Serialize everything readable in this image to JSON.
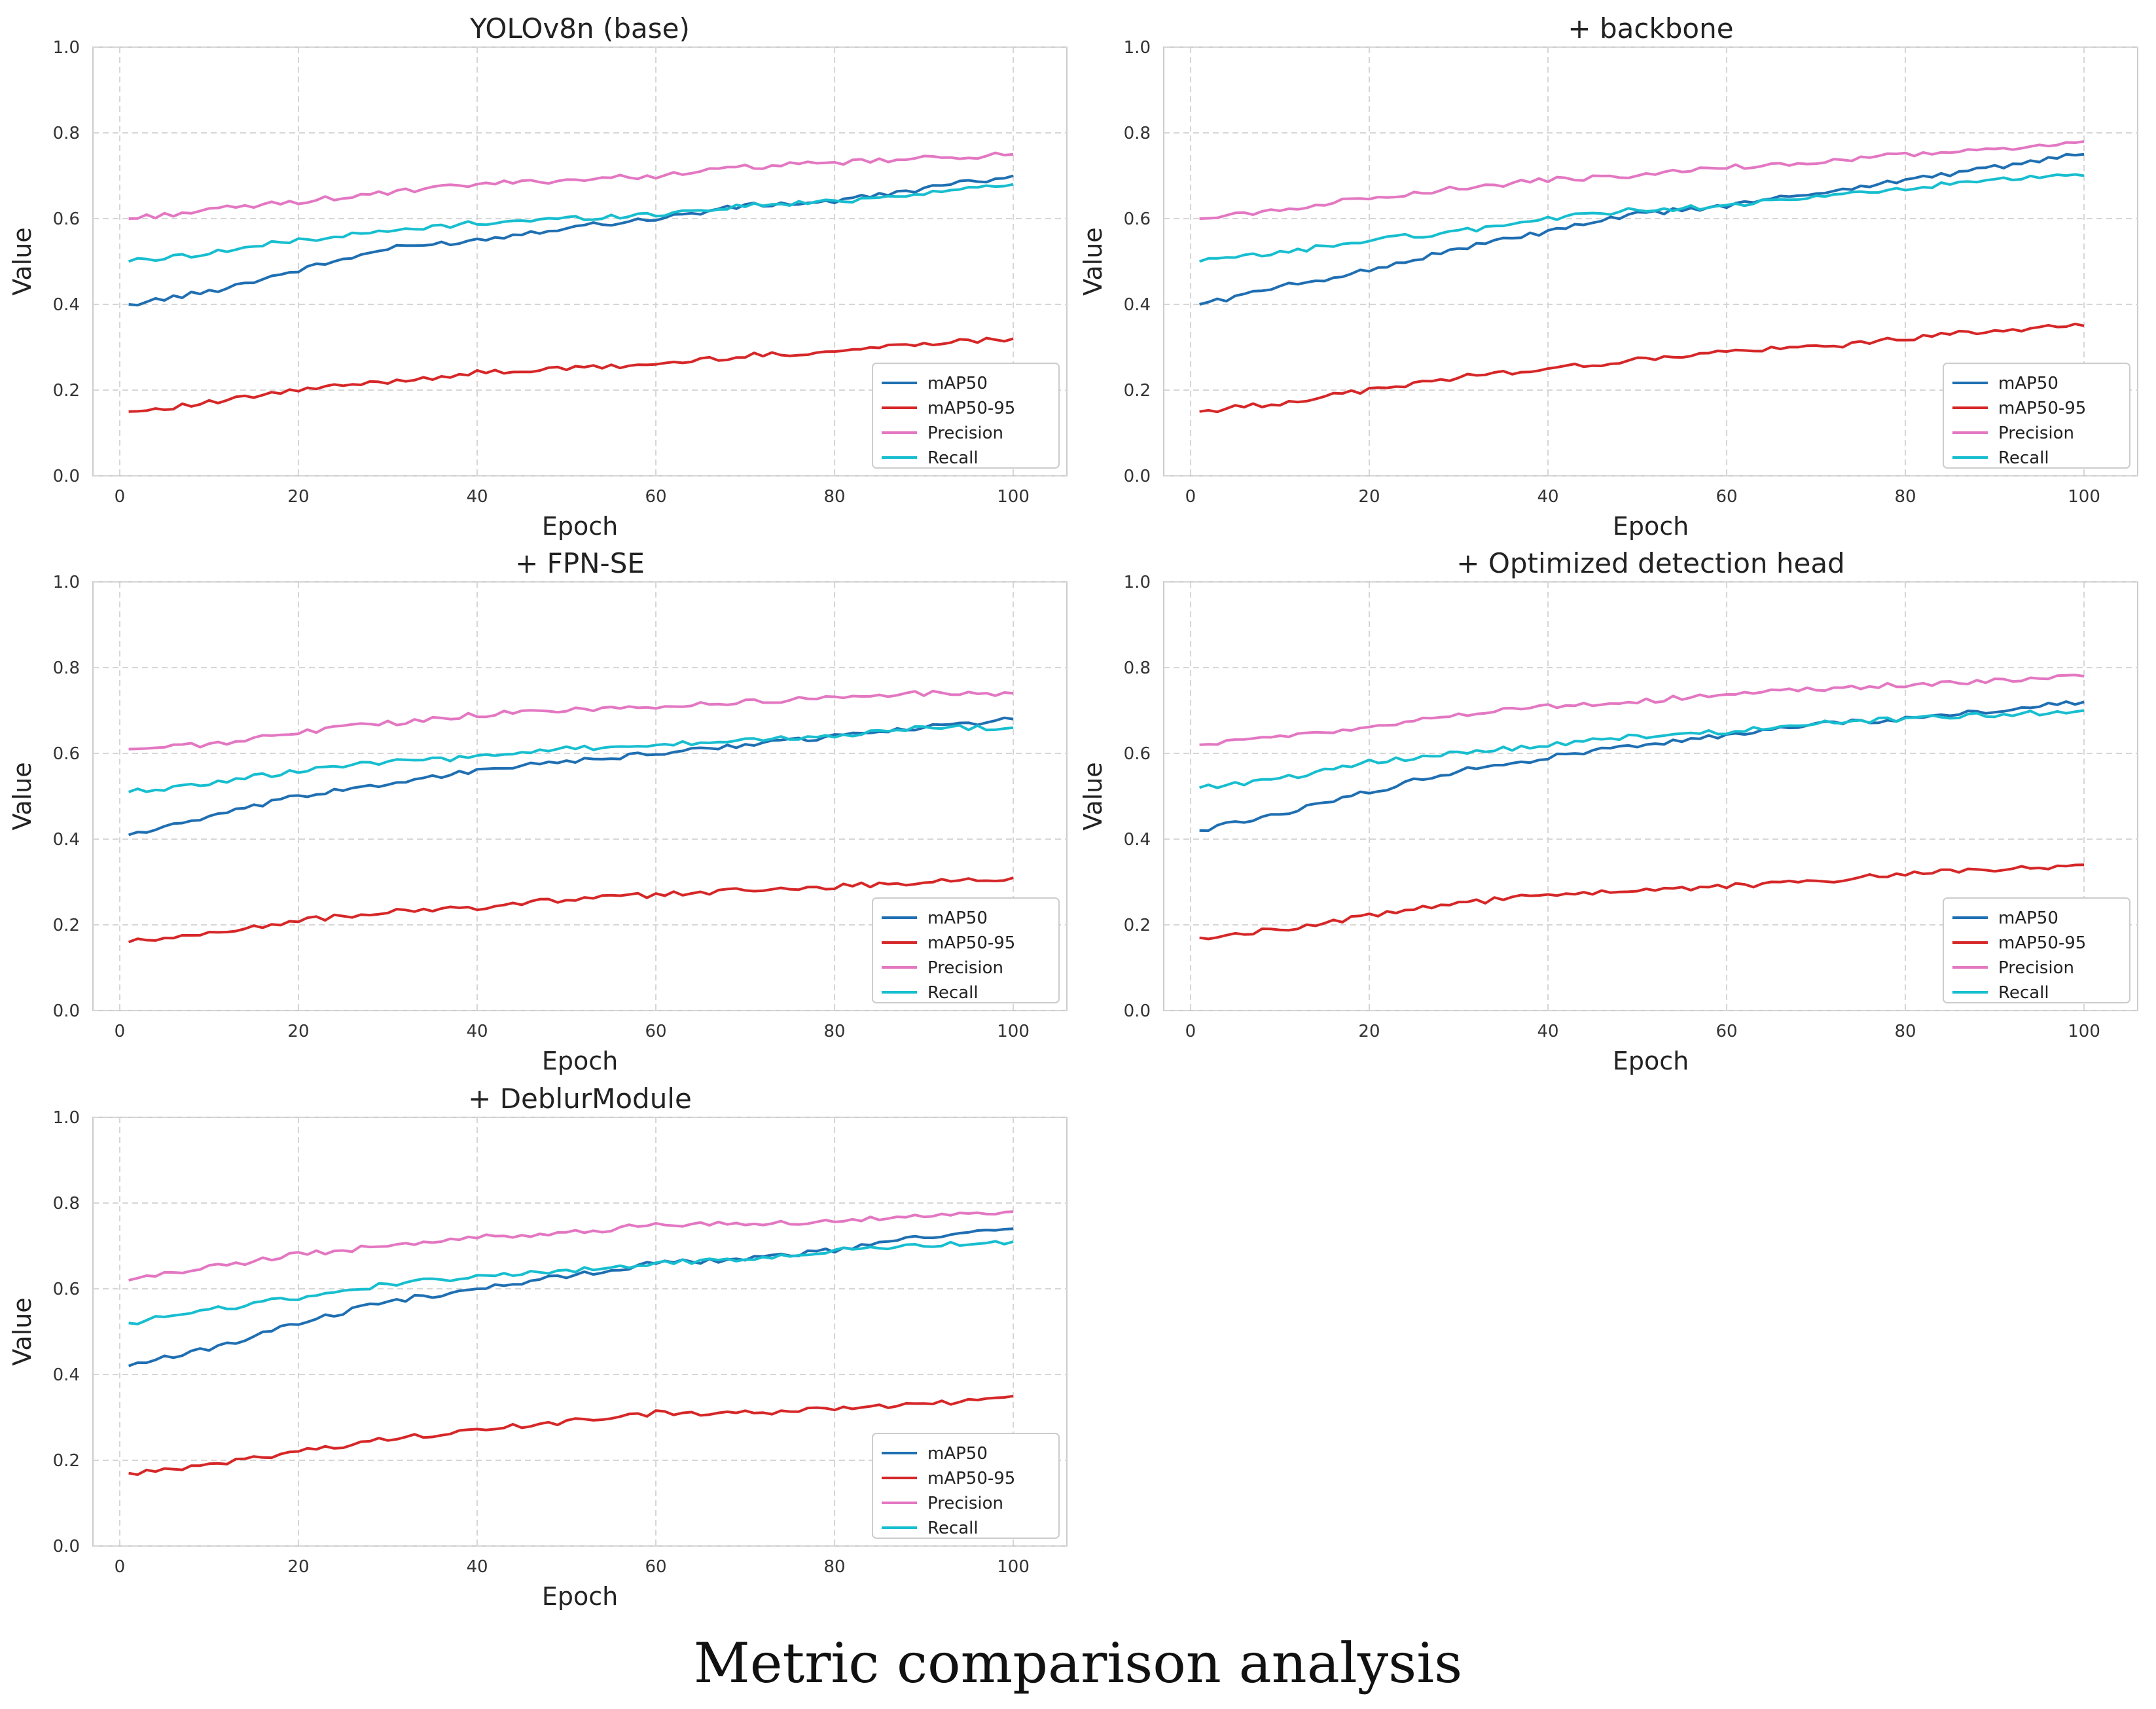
{
  "caption": "Metric comparison analysis",
  "chart_data": [
    {
      "type": "line",
      "title": "YOLOv8n (base)",
      "xlabel": "Epoch",
      "ylabel": "Value",
      "xlim": [
        -3,
        106
      ],
      "ylim": [
        0,
        1
      ],
      "xticks": [
        "0",
        "20",
        "40",
        "60",
        "80",
        "100"
      ],
      "yticks": [
        "0.0",
        "0.2",
        "0.4",
        "0.6",
        "0.8",
        "1.0"
      ],
      "grid": true,
      "legend_position": "lower-right",
      "x": [
        1,
        10,
        20,
        30,
        40,
        50,
        60,
        70,
        80,
        90,
        100
      ],
      "series": [
        {
          "name": "mAP50",
          "color": "#1f6fb2",
          "values": [
            0.4,
            0.43,
            0.48,
            0.53,
            0.55,
            0.58,
            0.6,
            0.63,
            0.64,
            0.67,
            0.7
          ]
        },
        {
          "name": "mAP50-95",
          "color": "#d62728",
          "values": [
            0.15,
            0.17,
            0.2,
            0.22,
            0.24,
            0.25,
            0.26,
            0.28,
            0.29,
            0.31,
            0.32
          ]
        },
        {
          "name": "Precision",
          "color": "#e377c2",
          "values": [
            0.6,
            0.62,
            0.64,
            0.66,
            0.68,
            0.69,
            0.7,
            0.72,
            0.73,
            0.74,
            0.75
          ]
        },
        {
          "name": "Recall",
          "color": "#17becf",
          "values": [
            0.5,
            0.52,
            0.55,
            0.57,
            0.59,
            0.6,
            0.61,
            0.63,
            0.64,
            0.66,
            0.68
          ]
        }
      ]
    },
    {
      "type": "line",
      "title": "+ backbone",
      "xlabel": "Epoch",
      "ylabel": "Value",
      "xlim": [
        -3,
        106
      ],
      "ylim": [
        0,
        1
      ],
      "xticks": [
        "0",
        "20",
        "40",
        "60",
        "80",
        "100"
      ],
      "yticks": [
        "0.0",
        "0.2",
        "0.4",
        "0.6",
        "0.8",
        "1.0"
      ],
      "grid": true,
      "legend_position": "lower-right",
      "x": [
        1,
        10,
        20,
        30,
        40,
        50,
        60,
        70,
        80,
        90,
        100
      ],
      "series": [
        {
          "name": "mAP50",
          "color": "#1f6fb2",
          "values": [
            0.4,
            0.44,
            0.48,
            0.53,
            0.57,
            0.61,
            0.63,
            0.66,
            0.69,
            0.72,
            0.75
          ]
        },
        {
          "name": "mAP50-95",
          "color": "#d62728",
          "values": [
            0.15,
            0.17,
            0.2,
            0.23,
            0.25,
            0.27,
            0.29,
            0.3,
            0.32,
            0.34,
            0.35
          ]
        },
        {
          "name": "Precision",
          "color": "#e377c2",
          "values": [
            0.6,
            0.62,
            0.65,
            0.67,
            0.69,
            0.7,
            0.72,
            0.73,
            0.75,
            0.76,
            0.78
          ]
        },
        {
          "name": "Recall",
          "color": "#17becf",
          "values": [
            0.5,
            0.52,
            0.55,
            0.57,
            0.6,
            0.62,
            0.63,
            0.65,
            0.67,
            0.69,
            0.7
          ]
        }
      ]
    },
    {
      "type": "line",
      "title": "+ FPN-SE",
      "xlabel": "Epoch",
      "ylabel": "Value",
      "xlim": [
        -3,
        106
      ],
      "ylim": [
        0,
        1
      ],
      "xticks": [
        "0",
        "20",
        "40",
        "60",
        "80",
        "100"
      ],
      "yticks": [
        "0.0",
        "0.2",
        "0.4",
        "0.6",
        "0.8",
        "1.0"
      ],
      "grid": true,
      "legend_position": "lower-right",
      "x": [
        1,
        10,
        20,
        30,
        40,
        50,
        60,
        70,
        80,
        90,
        100
      ],
      "series": [
        {
          "name": "mAP50",
          "color": "#1f6fb2",
          "values": [
            0.41,
            0.45,
            0.5,
            0.53,
            0.56,
            0.58,
            0.6,
            0.62,
            0.64,
            0.66,
            0.68
          ]
        },
        {
          "name": "mAP50-95",
          "color": "#d62728",
          "values": [
            0.16,
            0.18,
            0.21,
            0.23,
            0.24,
            0.26,
            0.27,
            0.28,
            0.29,
            0.3,
            0.31
          ]
        },
        {
          "name": "Precision",
          "color": "#e377c2",
          "values": [
            0.61,
            0.62,
            0.65,
            0.67,
            0.69,
            0.7,
            0.71,
            0.72,
            0.73,
            0.74,
            0.74
          ]
        },
        {
          "name": "Recall",
          "color": "#17becf",
          "values": [
            0.51,
            0.53,
            0.56,
            0.58,
            0.59,
            0.61,
            0.62,
            0.63,
            0.64,
            0.66,
            0.66
          ]
        }
      ]
    },
    {
      "type": "line",
      "title": "+ Optimized detection head",
      "xlabel": "Epoch",
      "ylabel": "Value",
      "xlim": [
        -3,
        106
      ],
      "ylim": [
        0,
        1
      ],
      "xticks": [
        "0",
        "20",
        "40",
        "60",
        "80",
        "100"
      ],
      "yticks": [
        "0.0",
        "0.2",
        "0.4",
        "0.6",
        "0.8",
        "1.0"
      ],
      "grid": true,
      "legend_position": "lower-right",
      "x": [
        1,
        10,
        20,
        30,
        40,
        50,
        60,
        70,
        80,
        90,
        100
      ],
      "series": [
        {
          "name": "mAP50",
          "color": "#1f6fb2",
          "values": [
            0.42,
            0.46,
            0.51,
            0.56,
            0.59,
            0.62,
            0.64,
            0.67,
            0.68,
            0.7,
            0.72
          ]
        },
        {
          "name": "mAP50-95",
          "color": "#d62728",
          "values": [
            0.17,
            0.19,
            0.22,
            0.25,
            0.27,
            0.28,
            0.29,
            0.3,
            0.32,
            0.33,
            0.34
          ]
        },
        {
          "name": "Precision",
          "color": "#e377c2",
          "values": [
            0.62,
            0.64,
            0.66,
            0.69,
            0.71,
            0.72,
            0.74,
            0.75,
            0.76,
            0.77,
            0.78
          ]
        },
        {
          "name": "Recall",
          "color": "#17becf",
          "values": [
            0.52,
            0.54,
            0.58,
            0.6,
            0.62,
            0.64,
            0.65,
            0.67,
            0.68,
            0.69,
            0.7
          ]
        }
      ]
    },
    {
      "type": "line",
      "title": "+ DeblurModule",
      "xlabel": "Epoch",
      "ylabel": "Value",
      "xlim": [
        -3,
        106
      ],
      "ylim": [
        0,
        1
      ],
      "xticks": [
        "0",
        "20",
        "40",
        "60",
        "80",
        "100"
      ],
      "yticks": [
        "0.0",
        "0.2",
        "0.4",
        "0.6",
        "0.8",
        "1.0"
      ],
      "grid": true,
      "legend_position": "lower-right",
      "x": [
        1,
        10,
        20,
        30,
        40,
        50,
        60,
        70,
        80,
        90,
        100
      ],
      "series": [
        {
          "name": "mAP50",
          "color": "#1f6fb2",
          "values": [
            0.42,
            0.46,
            0.52,
            0.57,
            0.6,
            0.63,
            0.66,
            0.67,
            0.69,
            0.72,
            0.74
          ]
        },
        {
          "name": "mAP50-95",
          "color": "#d62728",
          "values": [
            0.17,
            0.19,
            0.22,
            0.25,
            0.27,
            0.29,
            0.31,
            0.31,
            0.32,
            0.33,
            0.35
          ]
        },
        {
          "name": "Precision",
          "color": "#e377c2",
          "values": [
            0.62,
            0.65,
            0.68,
            0.7,
            0.72,
            0.73,
            0.75,
            0.75,
            0.76,
            0.77,
            0.78
          ]
        },
        {
          "name": "Recall",
          "color": "#17becf",
          "values": [
            0.52,
            0.55,
            0.58,
            0.61,
            0.63,
            0.64,
            0.66,
            0.67,
            0.69,
            0.7,
            0.71
          ]
        }
      ]
    }
  ]
}
